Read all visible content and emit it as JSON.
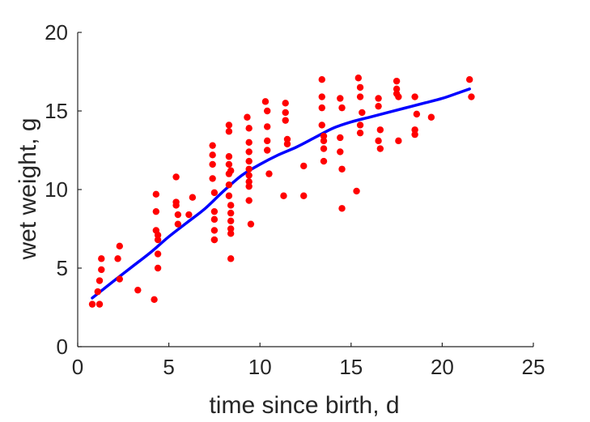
{
  "chart_data": {
    "type": "scatter",
    "title": "",
    "xlabel": "time since birth, d",
    "ylabel": "wet weight, g",
    "xlim": [
      0,
      25
    ],
    "ylim": [
      0,
      20
    ],
    "xticks": [
      0,
      5,
      10,
      15,
      20,
      25
    ],
    "yticks": [
      0,
      5,
      10,
      15,
      20
    ],
    "grid": false,
    "box": false,
    "colors": {
      "points": "#ff0000",
      "fit": "#0000ff",
      "axis": "#262626"
    },
    "series": [
      {
        "kind": "points",
        "x": [
          0.8,
          1.1,
          1.2,
          1.2,
          1.3,
          1.3,
          2.2,
          2.3,
          2.3,
          3.3,
          4.2,
          4.3,
          4.3,
          4.3,
          4.4,
          4.4,
          4.4,
          4.4,
          5.4,
          5.4,
          5.4,
          5.5,
          5.5,
          6.1,
          6.3,
          7.4,
          7.4,
          7.4,
          7.4,
          7.5,
          7.5,
          7.5,
          7.5,
          7.5,
          7.5,
          8.3,
          8.3,
          8.3,
          8.3,
          8.3,
          8.3,
          8.3,
          8.4,
          8.4,
          8.4,
          8.4,
          8.4,
          8.4,
          8.4,
          9.3,
          9.4,
          9.4,
          9.4,
          9.4,
          9.4,
          9.4,
          9.4,
          9.4,
          9.4,
          9.5,
          10.3,
          10.4,
          10.4,
          10.4,
          10.4,
          10.5,
          11.3,
          11.4,
          11.4,
          11.4,
          11.5,
          11.5,
          12.4,
          12.4,
          13.4,
          13.4,
          13.4,
          13.4,
          13.5,
          13.5,
          13.5,
          13.5,
          14.4,
          14.4,
          14.4,
          14.5,
          14.5,
          14.5,
          15.3,
          15.4,
          15.5,
          15.5,
          15.5,
          15.5,
          15.6,
          16.5,
          16.5,
          16.5,
          16.6,
          16.6,
          17.5,
          17.5,
          17.5,
          17.6,
          17.6,
          18.5,
          18.5,
          18.5,
          18.6,
          19.4,
          21.5,
          21.6
        ],
        "y": [
          2.7,
          3.5,
          2.7,
          4.2,
          4.9,
          5.6,
          5.6,
          6.4,
          4.3,
          3.6,
          3.0,
          9.7,
          8.6,
          7.4,
          7.1,
          6.8,
          5.9,
          5.0,
          10.8,
          9.2,
          9.0,
          8.4,
          7.8,
          8.4,
          9.5,
          12.8,
          12.2,
          11.6,
          10.7,
          9.8,
          8.6,
          8.1,
          7.4,
          6.8,
          6.8,
          14.1,
          13.7,
          12.1,
          11.6,
          11.0,
          10.3,
          9.6,
          9.0,
          8.5,
          8.0,
          7.5,
          7.2,
          5.6,
          11.2,
          14.6,
          13.9,
          13.0,
          12.4,
          11.8,
          11.3,
          10.9,
          10.5,
          10.2,
          9.3,
          7.8,
          15.6,
          15.0,
          14.0,
          13.1,
          12.5,
          11.0,
          9.6,
          15.5,
          14.9,
          14.4,
          13.2,
          12.9,
          11.5,
          9.6,
          17.0,
          15.9,
          15.2,
          14.1,
          13.4,
          13.1,
          12.6,
          11.8,
          15.8,
          13.3,
          12.4,
          11.3,
          8.8,
          15.2,
          9.9,
          17.1,
          16.5,
          15.9,
          14.1,
          13.6,
          14.9,
          15.8,
          15.3,
          13.1,
          12.6,
          13.8,
          16.9,
          16.4,
          16.1,
          15.9,
          13.1,
          15.9,
          13.8,
          13.5,
          14.8,
          14.6,
          17.0,
          15.9
        ]
      },
      {
        "kind": "fit",
        "x": [
          0.8,
          2,
          3,
          4,
          5,
          6,
          7,
          8,
          9,
          10,
          11,
          12,
          13,
          14,
          15,
          16,
          17,
          18,
          19,
          20,
          21,
          21.5
        ],
        "y": [
          3.1,
          4.2,
          5.1,
          6.0,
          7.0,
          7.9,
          8.8,
          9.9,
          10.9,
          11.6,
          12.2,
          12.7,
          13.3,
          13.9,
          14.3,
          14.6,
          14.9,
          15.2,
          15.5,
          15.8,
          16.2,
          16.4
        ]
      }
    ]
  }
}
